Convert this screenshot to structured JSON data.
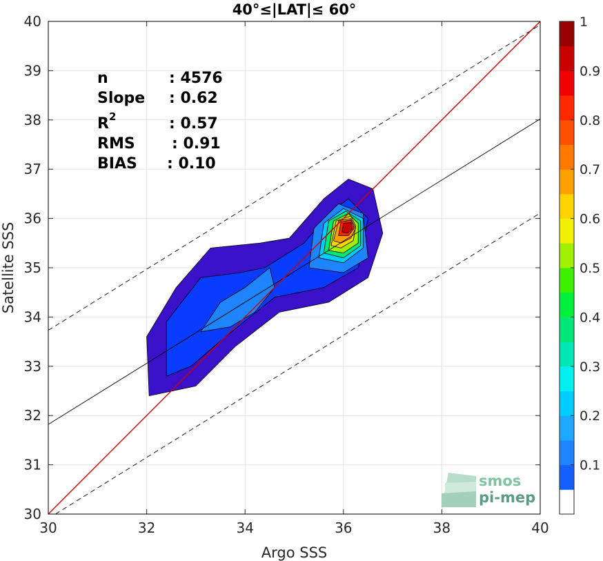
{
  "chart_data": {
    "type": "contour",
    "title": "40°≤|LAT|≤ 60°",
    "xlabel": "Argo SSS",
    "ylabel": "Satellite SSS",
    "xlim": [
      30,
      40
    ],
    "ylim": [
      30,
      40
    ],
    "xticks": [
      "30",
      "32",
      "34",
      "36",
      "38",
      "40"
    ],
    "yticks": [
      "30",
      "31",
      "32",
      "33",
      "34",
      "35",
      "36",
      "37",
      "38",
      "39",
      "40"
    ],
    "grid": true,
    "stats": [
      {
        "label": "n",
        "value": ": 4576"
      },
      {
        "label": "Slope",
        "value": ": 0.62"
      },
      {
        "label": "R",
        "sup": "2",
        "value": ": 0.57"
      },
      {
        "label": "RMS",
        "value": ": 0.91"
      },
      {
        "label": "BIAS",
        "value": ": 0.10"
      }
    ],
    "lines": {
      "identity": {
        "slope": 1,
        "intercept": 0,
        "color": "#cc0000"
      },
      "regression": {
        "slope": 0.62,
        "intercept": 13.22,
        "color": "#000000"
      },
      "regression_upper": {
        "slope": 0.62,
        "intercept": 15.13,
        "dashed": true
      },
      "regression_lower": {
        "slope": 0.62,
        "intercept": 11.31,
        "dashed": true
      }
    },
    "colorbar": {
      "range": [
        0,
        1
      ],
      "ticks": [
        "0.1",
        "0.2",
        "0.3",
        "0.4",
        "0.5",
        "0.6",
        "0.7",
        "0.8",
        "0.9",
        "1"
      ],
      "levels": 20,
      "colors": [
        "#ffffff",
        "#5a00a0",
        "#3a00c8",
        "#2a10e0",
        "#0000ff",
        "#0a3cff",
        "#1460ff",
        "#1e84ff",
        "#1ea8ff",
        "#00ccff",
        "#00f0f0",
        "#00e6b4",
        "#00e678",
        "#00f03c",
        "#3cf000",
        "#a0f000",
        "#f0f000",
        "#ffd200",
        "#ffa000",
        "#ff7800",
        "#ff5000",
        "#ff2800",
        "#f00000",
        "#c80000",
        "#960000"
      ]
    },
    "density_peak": {
      "x": 36.1,
      "y": 35.8
    },
    "contour_levels": [
      {
        "level": 0.05,
        "color": "#3a10c8",
        "poly": [
          [
            32.05,
            32.4
          ],
          [
            32.0,
            33.6
          ],
          [
            32.6,
            34.6
          ],
          [
            33.3,
            35.4
          ],
          [
            34.3,
            35.5
          ],
          [
            34.9,
            35.6
          ],
          [
            35.6,
            36.4
          ],
          [
            36.1,
            36.8
          ],
          [
            36.6,
            36.6
          ],
          [
            36.8,
            35.7
          ],
          [
            36.5,
            34.8
          ],
          [
            35.7,
            34.3
          ],
          [
            34.7,
            34.1
          ],
          [
            33.8,
            33.4
          ],
          [
            33.0,
            32.6
          ]
        ]
      },
      {
        "level": 0.15,
        "color": "#0a3cff",
        "poly": [
          [
            32.4,
            32.8
          ],
          [
            32.4,
            33.9
          ],
          [
            33.1,
            34.8
          ],
          [
            33.9,
            34.9
          ],
          [
            34.4,
            35.0
          ],
          [
            35.2,
            35.5
          ],
          [
            35.7,
            36.1
          ],
          [
            36.1,
            36.4
          ],
          [
            36.5,
            36.0
          ],
          [
            36.3,
            35.0
          ],
          [
            35.6,
            34.6
          ],
          [
            34.6,
            34.4
          ],
          [
            33.6,
            33.6
          ],
          [
            32.9,
            33.0
          ]
        ]
      },
      {
        "level": 0.25,
        "color": "#1e84ff",
        "poly": [
          [
            33.1,
            33.7
          ],
          [
            33.5,
            34.3
          ],
          [
            34.0,
            34.6
          ],
          [
            34.5,
            35.0
          ],
          [
            34.6,
            34.6
          ],
          [
            34.2,
            34.1
          ],
          [
            33.7,
            33.8
          ]
        ]
      },
      {
        "level": 0.25,
        "color": "#1e84ff",
        "poly": [
          [
            35.3,
            35.0
          ],
          [
            35.4,
            35.8
          ],
          [
            35.9,
            36.3
          ],
          [
            36.4,
            36.1
          ],
          [
            36.5,
            35.2
          ],
          [
            36.0,
            34.9
          ]
        ]
      },
      {
        "level": 0.35,
        "color": "#00ccff",
        "poly": [
          [
            35.5,
            35.2
          ],
          [
            35.6,
            35.9
          ],
          [
            36.0,
            36.2
          ],
          [
            36.4,
            36.0
          ],
          [
            36.4,
            35.4
          ],
          [
            36.0,
            35.1
          ]
        ]
      },
      {
        "level": 0.45,
        "color": "#00e678",
        "poly": [
          [
            35.6,
            35.3
          ],
          [
            35.7,
            35.95
          ],
          [
            36.05,
            36.15
          ],
          [
            36.35,
            35.95
          ],
          [
            36.35,
            35.45
          ],
          [
            36.0,
            35.2
          ]
        ]
      },
      {
        "level": 0.55,
        "color": "#a0f000",
        "poly": [
          [
            35.7,
            35.35
          ],
          [
            35.8,
            35.95
          ],
          [
            36.1,
            36.1
          ],
          [
            36.3,
            35.9
          ],
          [
            36.3,
            35.5
          ],
          [
            36.0,
            35.3
          ]
        ]
      },
      {
        "level": 0.65,
        "color": "#ffd200",
        "poly": [
          [
            35.75,
            35.45
          ],
          [
            35.85,
            35.95
          ],
          [
            36.15,
            36.05
          ],
          [
            36.25,
            35.85
          ],
          [
            36.2,
            35.55
          ],
          [
            35.95,
            35.4
          ]
        ]
      },
      {
        "level": 0.75,
        "color": "#ffa000",
        "poly": [
          [
            35.8,
            35.55
          ],
          [
            35.9,
            35.95
          ],
          [
            36.15,
            36.0
          ],
          [
            36.25,
            35.8
          ],
          [
            36.15,
            35.6
          ],
          [
            35.95,
            35.5
          ]
        ]
      },
      {
        "level": 0.85,
        "color": "#ff2800",
        "poly": [
          [
            35.9,
            35.65
          ],
          [
            35.95,
            35.93
          ],
          [
            36.15,
            35.97
          ],
          [
            36.22,
            35.8
          ],
          [
            36.1,
            35.65
          ]
        ]
      },
      {
        "level": 0.95,
        "color": "#c80000",
        "poly": [
          [
            35.97,
            35.72
          ],
          [
            36.0,
            35.9
          ],
          [
            36.15,
            35.92
          ],
          [
            36.18,
            35.78
          ],
          [
            36.08,
            35.7
          ]
        ]
      }
    ]
  },
  "watermark": {
    "line1": "smos",
    "line2": "pi-mep"
  }
}
